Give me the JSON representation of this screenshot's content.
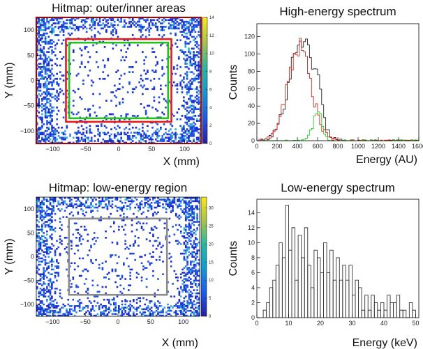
{
  "chart_data": [
    {
      "id": "hitmap-outer-inner",
      "type": "heatmap",
      "title": "Hitmap: outer/inner areas",
      "xlabel": "X (mm)",
      "ylabel": "Y (mm)",
      "xlim": [
        -125,
        125
      ],
      "ylim": [
        -125,
        125
      ],
      "x_ticks": [
        -100,
        -50,
        0,
        50,
        100
      ],
      "x_tick_labels": [
        "−100",
        "−50",
        "0",
        "50",
        "100"
      ],
      "y_ticks": [
        100,
        50,
        0,
        -50,
        -100
      ],
      "y_tick_labels": [
        "100",
        "50",
        "0",
        "−50",
        "−100"
      ],
      "colorbar": {
        "min": 0,
        "max": 14,
        "ticks": [
          0,
          2,
          4,
          6,
          8,
          10,
          12,
          14
        ]
      },
      "regions": [
        {
          "name": "outer",
          "color": "#e21b1b",
          "x": [
            -125,
            125
          ],
          "y": [
            -125,
            125
          ]
        },
        {
          "name": "inner-outer-border",
          "color": "#e21b1b",
          "x": [
            -80,
            80
          ],
          "y": [
            -82,
            82
          ]
        },
        {
          "name": "inner",
          "color": "#21c21a",
          "x": [
            -75,
            75
          ],
          "y": [
            -75,
            75
          ]
        }
      ],
      "seed": 7
    },
    {
      "id": "high-energy-spectrum",
      "type": "line",
      "title": "High-energy spectrum",
      "xlabel": "Energy (AU)",
      "ylabel": "Counts",
      "xlim": [
        0,
        1600
      ],
      "ylim": [
        0,
        135
      ],
      "x_ticks": [
        0,
        200,
        400,
        600,
        800,
        1000,
        1200,
        1400,
        1600
      ],
      "y_ticks": [
        0,
        20,
        40,
        60,
        80,
        100,
        120
      ],
      "series": [
        {
          "name": "all",
          "color": "#222222",
          "peaks": [
            {
              "mu": 440,
              "sigma": 120,
              "amp": 118
            },
            {
              "mu": 600,
              "sigma": 40,
              "amp": 30
            }
          ]
        },
        {
          "name": "inner",
          "color": "#e81c1c",
          "peaks": [
            {
              "mu": 420,
              "sigma": 115,
              "amp": 108
            }
          ]
        },
        {
          "name": "outer",
          "color": "#21d11d",
          "peaks": [
            {
              "mu": 600,
              "sigma": 45,
              "amp": 32
            }
          ]
        }
      ]
    },
    {
      "id": "hitmap-low-energy",
      "type": "heatmap",
      "title": "Hitmap: low-energy region",
      "xlabel": "X (mm)",
      "ylabel": "Y (mm)",
      "xlim": [
        -125,
        125
      ],
      "ylim": [
        -125,
        125
      ],
      "x_ticks": [
        -100,
        -50,
        0,
        50,
        100
      ],
      "x_tick_labels": [
        "−100",
        "−50",
        "0",
        "50",
        "100"
      ],
      "y_ticks": [
        100,
        50,
        0,
        -50,
        -100
      ],
      "y_tick_labels": [
        "100",
        "50",
        "0",
        "−50",
        "−100"
      ],
      "colorbar": {
        "min": 0,
        "max": 33,
        "ticks": [
          0,
          5,
          10,
          15,
          20,
          25,
          30
        ]
      },
      "regions": [
        {
          "name": "low-energy-region",
          "color": "#8c8c8c",
          "x": [
            -75,
            75
          ],
          "y": [
            -80,
            80
          ]
        }
      ],
      "seed": 23
    },
    {
      "id": "low-energy-spectrum",
      "type": "bar",
      "title": "Low-energy spectrum",
      "xlabel": "Energy (keV)",
      "ylabel": "Counts",
      "xlim": [
        0,
        51
      ],
      "ylim": [
        0,
        15.8
      ],
      "x_ticks": [
        0,
        10,
        20,
        30,
        40,
        50
      ],
      "y_ticks": [
        0,
        2,
        4,
        6,
        8,
        10,
        12,
        14
      ],
      "bin_width": 1,
      "bin_start": 2,
      "values": [
        1,
        2,
        4,
        5,
        7,
        10,
        8,
        15,
        9,
        12,
        5,
        11,
        8,
        12,
        7,
        4,
        9,
        8,
        6,
        10,
        6,
        9,
        5,
        8,
        5,
        7,
        5,
        7,
        3,
        5,
        4,
        1,
        3,
        1,
        3,
        2,
        1,
        2,
        1,
        3,
        2,
        2,
        3,
        1,
        1,
        0,
        2,
        1
      ]
    }
  ]
}
